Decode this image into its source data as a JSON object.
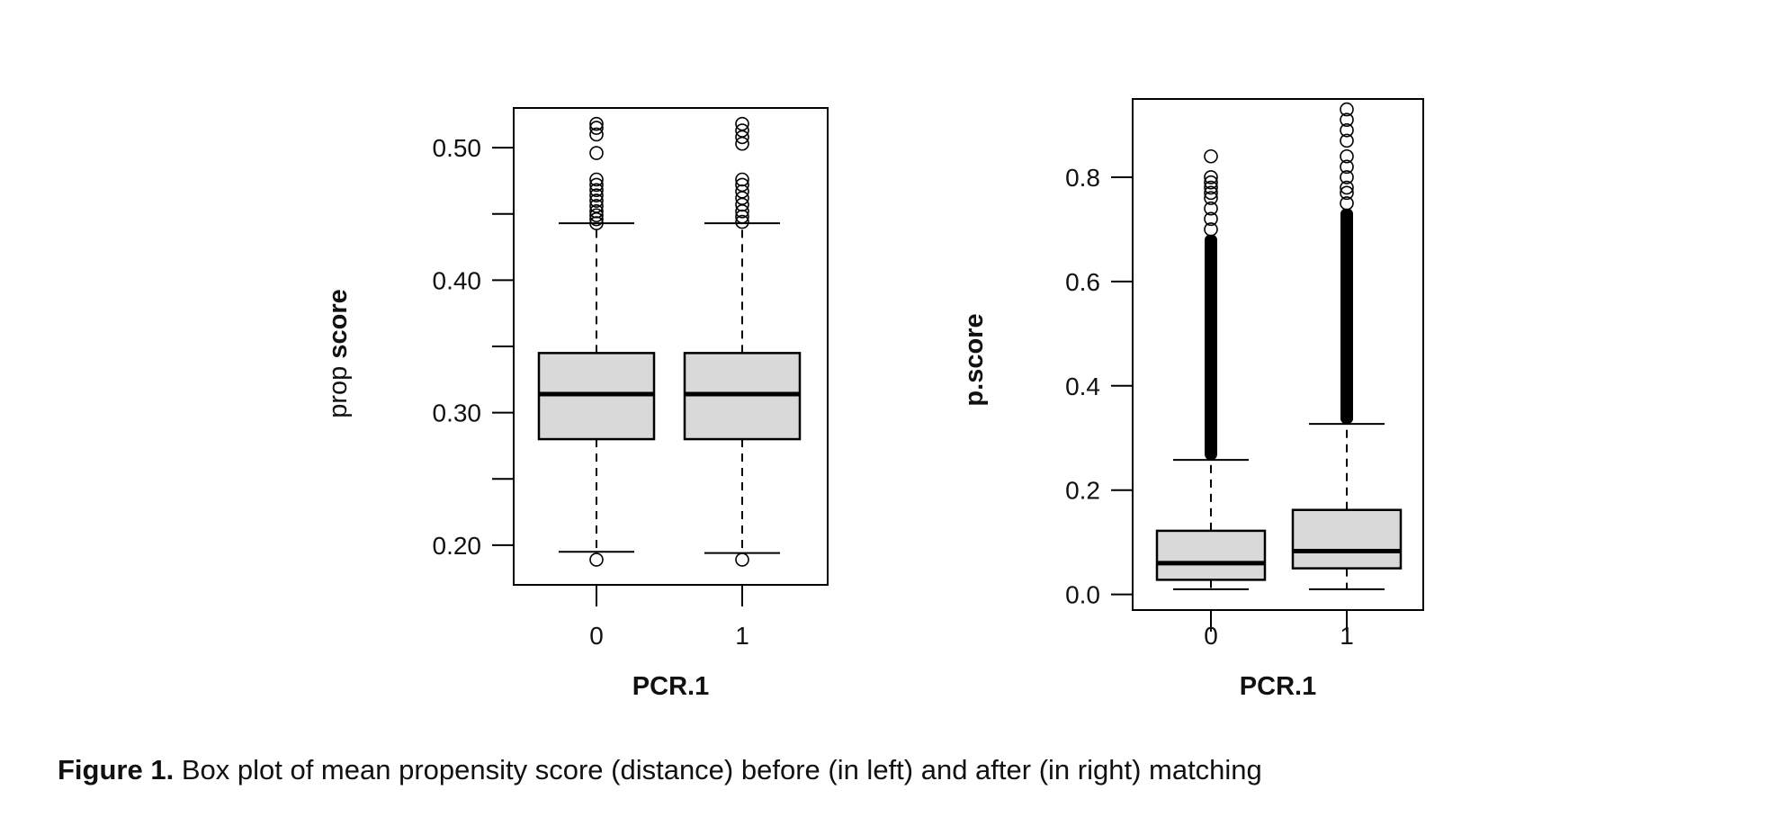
{
  "figure": {
    "caption_label": "Figure 1.",
    "caption_text": "Box plot of mean propensity score (distance) before (in left) and after (in right) matching"
  },
  "chart_data": [
    {
      "type": "box",
      "xlabel": "PCR.1",
      "ylabel_plain": "prop",
      "ylabel_bold": "score",
      "categories": [
        "0",
        "1"
      ],
      "ylim": [
        0.17,
        0.53
      ],
      "yticks": [
        0.2,
        0.25,
        0.3,
        0.35,
        0.4,
        0.45,
        0.5
      ],
      "ytick_labels": [
        {
          "value": 0.2,
          "label": "0.20"
        },
        {
          "value": 0.3,
          "label": "0.30"
        },
        {
          "value": 0.4,
          "label": "0.40"
        },
        {
          "value": 0.5,
          "label": "0.50"
        }
      ],
      "boxes": [
        {
          "category": "0",
          "whisker_low": 0.195,
          "q1": 0.28,
          "median": 0.314,
          "q3": 0.345,
          "whisker_high": 0.443,
          "outliers": [
            0.189,
            0.443,
            0.446,
            0.449,
            0.452,
            0.456,
            0.46,
            0.464,
            0.468,
            0.472,
            0.476,
            0.496,
            0.51,
            0.515,
            0.518
          ]
        },
        {
          "category": "1",
          "whisker_low": 0.194,
          "q1": 0.28,
          "median": 0.314,
          "q3": 0.345,
          "whisker_high": 0.443,
          "outliers": [
            0.189,
            0.444,
            0.448,
            0.452,
            0.457,
            0.462,
            0.467,
            0.472,
            0.476,
            0.503,
            0.508,
            0.513,
            0.518
          ]
        }
      ],
      "grid": false
    },
    {
      "type": "box",
      "xlabel": "PCR.1",
      "ylabel": "p.score",
      "categories": [
        "0",
        "1"
      ],
      "ylim": [
        -0.03,
        0.95
      ],
      "yticks": [
        0.0,
        0.2,
        0.4,
        0.6,
        0.8
      ],
      "ytick_labels": [
        {
          "value": 0.0,
          "label": "0.0"
        },
        {
          "value": 0.2,
          "label": "0.2"
        },
        {
          "value": 0.4,
          "label": "0.4"
        },
        {
          "value": 0.6,
          "label": "0.6"
        },
        {
          "value": 0.8,
          "label": "0.8"
        }
      ],
      "boxes": [
        {
          "category": "0",
          "whisker_low": 0.01,
          "q1": 0.028,
          "median": 0.06,
          "q3": 0.122,
          "whisker_high": 0.258,
          "outlier_band": [
            0.258,
            0.69
          ],
          "outliers": [
            0.7,
            0.72,
            0.74,
            0.76,
            0.77,
            0.78,
            0.79,
            0.8,
            0.84
          ]
        },
        {
          "category": "1",
          "whisker_low": 0.01,
          "q1": 0.05,
          "median": 0.083,
          "q3": 0.162,
          "whisker_high": 0.327,
          "outlier_band": [
            0.327,
            0.74
          ],
          "outliers": [
            0.75,
            0.77,
            0.78,
            0.8,
            0.82,
            0.84,
            0.87,
            0.89,
            0.91,
            0.93
          ]
        }
      ],
      "grid": false
    }
  ]
}
